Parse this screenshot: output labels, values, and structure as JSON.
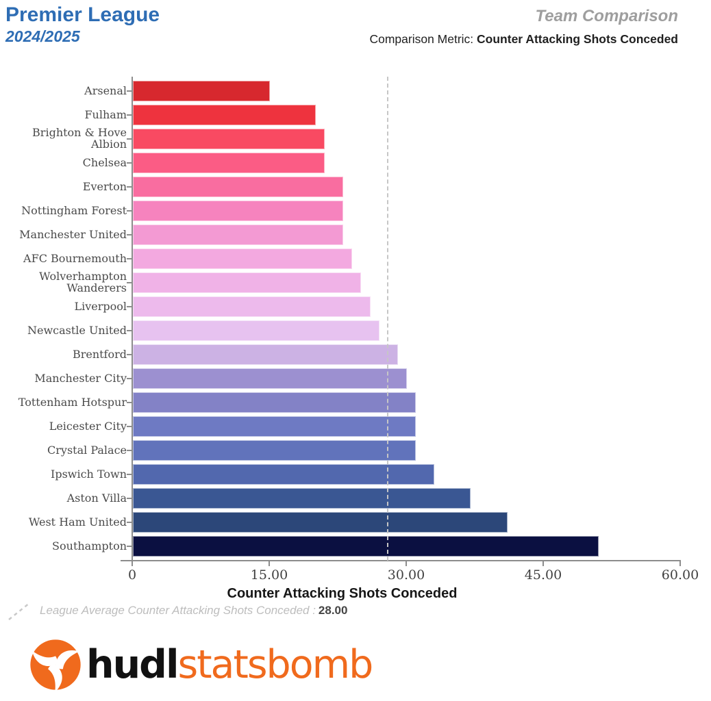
{
  "header": {
    "league": "Premier League",
    "season": "2024/2025",
    "report_type": "Team Comparison",
    "metric_label": "Comparison Metric: ",
    "metric_name": "Counter Attacking Shots Conceded"
  },
  "chart_data": {
    "type": "bar",
    "orientation": "horizontal",
    "xlabel": "Counter Attacking Shots Conceded",
    "xlim": [
      0,
      60
    ],
    "xticks": [
      0,
      15,
      30,
      45,
      60
    ],
    "xtick_labels": [
      "0",
      "15.00",
      "30.00",
      "45.00",
      "60.00"
    ],
    "grid": false,
    "categories": [
      "Arsenal",
      "Fulham",
      "Brighton & Hove Albion",
      "Chelsea",
      "Everton",
      "Nottingham Forest",
      "Manchester United",
      "AFC Bournemouth",
      "Wolverhampton\nWanderers",
      "Liverpool",
      "Newcastle United",
      "Brentford",
      "Manchester City",
      "Tottenham Hotspur",
      "Leicester City",
      "Crystal Palace",
      "Ipswich Town",
      "Aston Villa",
      "West Ham United",
      "Southampton"
    ],
    "values": [
      15,
      20,
      21,
      21,
      23,
      23,
      23,
      24,
      25,
      26,
      27,
      29,
      30,
      31,
      31,
      31,
      33,
      37,
      41,
      51
    ],
    "bar_colors": [
      "#d7282e",
      "#ee333e",
      "#f94a62",
      "#fb5c85",
      "#f96da0",
      "#f683be",
      "#f39ad3",
      "#f3a9e0",
      "#f0b2e7",
      "#edbaec",
      "#e7c2f0",
      "#ccb2e4",
      "#9c90d0",
      "#8382c6",
      "#6e7ac3",
      "#6173bb",
      "#5268ae",
      "#3a5793",
      "#2c4779",
      "#0b1041"
    ],
    "average_line": {
      "value": 28.0,
      "style": "dashed",
      "color": "#c6c6c6"
    }
  },
  "legend": {
    "label": "League Average Counter Attacking Shots Conceded : ",
    "value": "28.00"
  },
  "logo": {
    "hudl": "hudl",
    "statsbomb": "statsbomb"
  },
  "colors": {
    "title-blue": "#2e6db4",
    "report-gray": "#9e9e9e",
    "text-dark": "#1f1f1f",
    "axis-gray": "#8c8c8c",
    "tick-label": "#3f3f3f",
    "team-label": "#4a4a4a",
    "avg-line": "#c6c6c6",
    "legend-gray": "#bdbdbd",
    "legend-value": "#444444",
    "logo-orange": "#f06a1d",
    "logo-black": "#111111"
  }
}
